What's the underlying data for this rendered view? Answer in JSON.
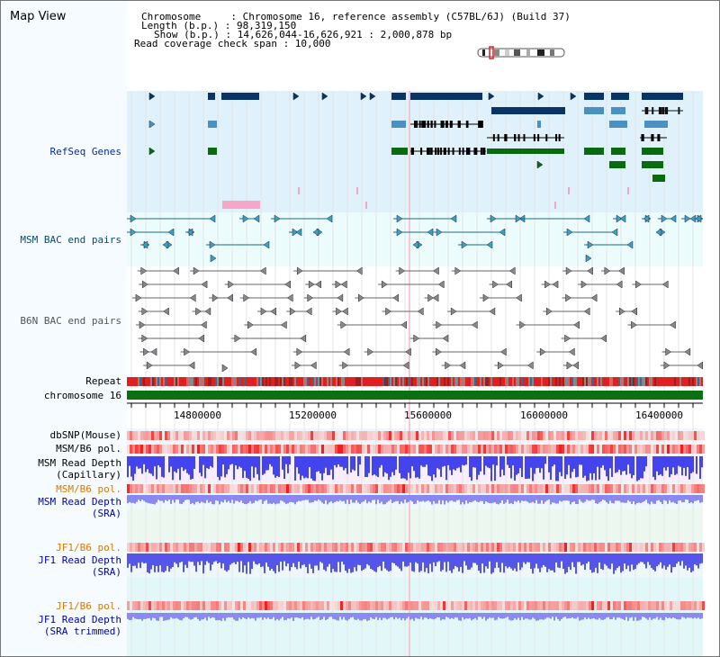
{
  "title": "Map View",
  "info": {
    "chromosome": "Chromosome     : Chromosome 16, reference assembly (C57BL/6J) (Build 37)",
    "length": "Length (b.p.) : 98,319,150",
    "show": "Show (b.p.) : 14,626,044-16,626,921 : 2,000,878 bp",
    "coverage": "Read coverage check span : 10,000"
  },
  "tracks": {
    "refseq": "RefSeq Genes",
    "msm_bac": "MSM BAC end pairs",
    "b6n_bac": "B6N BAC end pairs",
    "repeat": "Repeat",
    "chromosome": "chromosome 16",
    "dbsnp": "dbSNP(Mouse)",
    "msm_b6_pol": "MSM/B6 pol.",
    "msm_depth_cap_1": "MSM Read Depth",
    "msm_depth_cap_2": "(Capillary)",
    "msm_b6_pol2": "MSM/B6 pol.",
    "msm_depth_sra_1": "MSM Read Depth",
    "msm_depth_sra_2": "(SRA)",
    "jf1_pol": "JF1/B6 pol.",
    "jf1_depth_1": "JF1 Read Depth",
    "jf1_depth_2": "(SRA)",
    "jf1_pol2": "JF1/B6 pol.",
    "jf1_trim_1": "JF1 Read Depth",
    "jf1_trim_2": "(SRA trimmed)"
  },
  "axis_ticks": [
    "14800000",
    "15200000",
    "15600000",
    "16000000",
    "16400000"
  ],
  "colors": {
    "gene_dark": "#0a3366",
    "gene_light": "#4a90c0",
    "gene_green": "#0a6a10",
    "refseq_label": "#0a2a99",
    "msm_label": "#0a4a66",
    "b6n_label": "#555555",
    "pol_label": "#dd7700",
    "depth_label": "#0000aa"
  }
}
